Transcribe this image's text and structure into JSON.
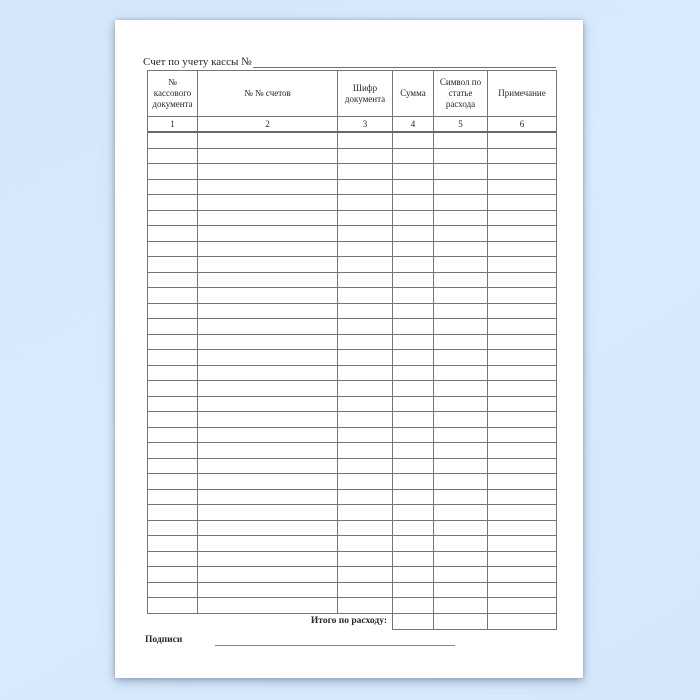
{
  "page": {
    "background_color": "#d7e9fc",
    "paper_color": "#ffffff",
    "border_color": "#767676",
    "text_color": "#262626"
  },
  "document": {
    "title_label": "Счет по учету кассы №",
    "table": {
      "columns": [
        {
          "label": "№ кассового документа",
          "number": "1"
        },
        {
          "label": "№ № счетов",
          "number": "2"
        },
        {
          "label": "Шифр документа",
          "number": "3"
        },
        {
          "label": "Сумма",
          "number": "4"
        },
        {
          "label": "Символ по статье расхода",
          "number": "5"
        },
        {
          "label": "Примечание",
          "number": "6"
        }
      ],
      "empty_row_count": 31,
      "total_label": "Итого по расходу:"
    },
    "signature_label": "Подписи"
  }
}
